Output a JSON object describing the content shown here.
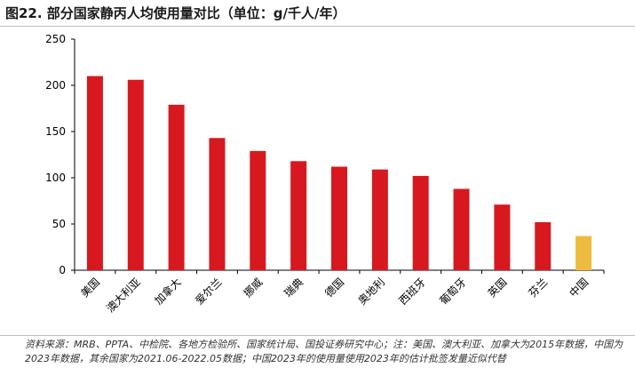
{
  "title": "图22. 部分国家静丙人均使用量对比（单位：g/千人/年）",
  "footnote": "资料来源：MRB、PPTA、中检院、各地方检验所、国家统计局、国投证券研究中心；注：美国、澳大利亚、加拿大为2015年数据，中国为2023年数据，其余国家为2021.06-2022.05数据；中国2023年的使用量使用2023年的估计批签发量近似代替",
  "colors": {
    "bar": "#D7191F",
    "highlight": "#EDBB3F",
    "axis": "#000000"
  },
  "chart_data": {
    "type": "bar",
    "title": "",
    "xlabel": "",
    "ylabel": "",
    "categories": [
      "美国",
      "澳大利亚",
      "加拿大",
      "爱尔兰",
      "挪威",
      "瑞典",
      "德国",
      "奥地利",
      "西班牙",
      "葡萄牙",
      "英国",
      "芬兰",
      "中国"
    ],
    "values": [
      210,
      206,
      179,
      143,
      129,
      118,
      112,
      109,
      102,
      88,
      71,
      52,
      37
    ],
    "highlight_category": "中国",
    "ylim": [
      0,
      250
    ],
    "yticks": [
      0,
      50,
      100,
      150,
      200,
      250
    ],
    "grid": false,
    "legend": "none"
  }
}
